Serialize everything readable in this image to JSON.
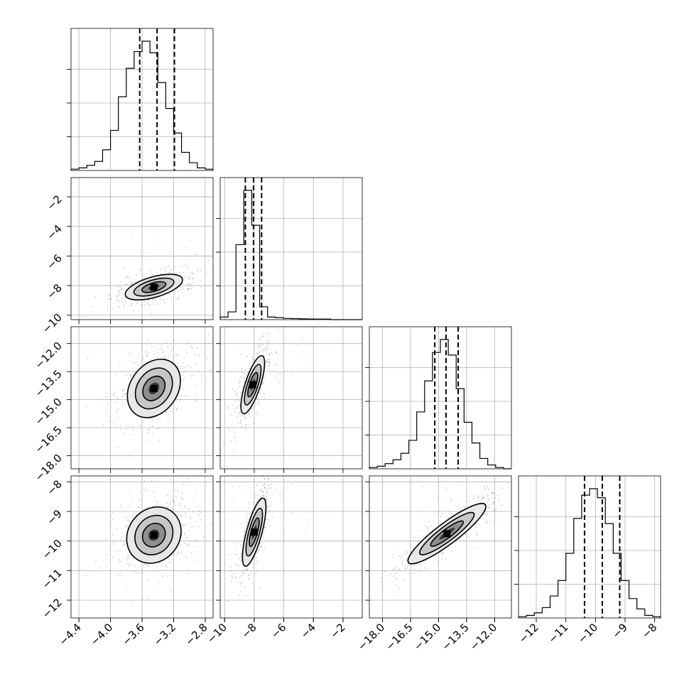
{
  "chart_data": {
    "type": "corner",
    "parameters": [
      {
        "range": [
          -4.5,
          -2.7
        ],
        "ticks": [
          -4.4,
          -4.0,
          -3.6,
          -3.2,
          -2.8
        ],
        "tick_labels": [
          "−4.4",
          "−4.0",
          "−3.6",
          "−3.2",
          "−2.8"
        ],
        "quantiles": [
          -3.63,
          -3.41,
          -3.19
        ],
        "histogram": [
          0.01,
          0.02,
          0.04,
          0.07,
          0.16,
          0.31,
          0.57,
          0.79,
          0.92,
          1.0,
          0.91,
          0.68,
          0.48,
          0.29,
          0.14,
          0.06,
          0.02,
          0.01
        ]
      },
      {
        "range": [
          -10.3,
          -0.7
        ],
        "ticks": [
          -10,
          -8,
          -6,
          -4,
          -2
        ],
        "tick_labels": [
          "−10",
          "−8",
          "−6",
          "−4",
          "−2"
        ],
        "quantiles": [
          -8.6,
          -8.05,
          -7.5
        ],
        "histogram": [
          0.02,
          0.06,
          0.58,
          1.0,
          0.73,
          0.1,
          0.02,
          0.015,
          0.01,
          0.008,
          0.006,
          0.005,
          0.004,
          0.004,
          0.0,
          0.0,
          0.0,
          0.0
        ]
      },
      {
        "range": [
          -18.7,
          -11.1
        ],
        "ticks": [
          -18.0,
          -16.5,
          -15.0,
          -13.5,
          -12.0
        ],
        "tick_labels": [
          "−18.0",
          "−16.5",
          "−15.0",
          "−13.5",
          "−12.0"
        ],
        "quantiles": [
          -15.2,
          -14.6,
          -13.95
        ],
        "histogram": [
          0.01,
          0.02,
          0.04,
          0.07,
          0.12,
          0.22,
          0.44,
          0.68,
          0.9,
          1.0,
          0.88,
          0.62,
          0.36,
          0.2,
          0.08,
          0.03,
          0.01,
          0.0
        ]
      },
      {
        "range": [
          -12.6,
          -7.8
        ],
        "ticks": [
          -12,
          -11,
          -10,
          -9,
          -8
        ],
        "tick_labels": [
          "−12",
          "−11",
          "−10",
          "−9",
          "−8"
        ],
        "quantiles": [
          -10.37,
          -9.77,
          -9.18
        ],
        "histogram": [
          0.01,
          0.02,
          0.04,
          0.08,
          0.17,
          0.29,
          0.5,
          0.77,
          0.95,
          1.0,
          0.93,
          0.73,
          0.5,
          0.29,
          0.15,
          0.07,
          0.02,
          0.01
        ]
      }
    ],
    "pairs": [
      {
        "row": 1,
        "col": 0,
        "center": [
          -3.45,
          -8.1
        ],
        "radii": [
          0.3,
          0.45
        ],
        "angle": 16,
        "scatter_color": "#999999"
      },
      {
        "row": 2,
        "col": 0,
        "center": [
          -3.45,
          -14.4
        ],
        "radii": [
          0.32,
          1.15
        ],
        "angle": 55,
        "scatter_color": "#999999"
      },
      {
        "row": 2,
        "col": 1,
        "center": [
          -8.1,
          -14.2
        ],
        "radii": [
          0.25,
          1.3
        ],
        "angle": 72,
        "scatter_color": "#999999"
      },
      {
        "row": 3,
        "col": 0,
        "center": [
          -3.45,
          -9.8
        ],
        "radii": [
          0.3,
          0.8
        ],
        "angle": 52,
        "scatter_color": "#999999"
      },
      {
        "row": 3,
        "col": 1,
        "center": [
          -8.0,
          -9.7
        ],
        "radii": [
          0.26,
          0.95
        ],
        "angle": 75,
        "scatter_color": "#999999"
      },
      {
        "row": 3,
        "col": 2,
        "center": [
          -14.55,
          -9.75
        ],
        "radii": [
          0.38,
          1.3
        ],
        "angle": 37,
        "scatter_color": "#999999"
      }
    ],
    "diag_y_ticks": [
      0.25,
      0.5,
      0.75
    ],
    "grid": true,
    "colors": {
      "line": "#000000",
      "grid": "#b0b0b0",
      "background": "#ffffff"
    }
  }
}
